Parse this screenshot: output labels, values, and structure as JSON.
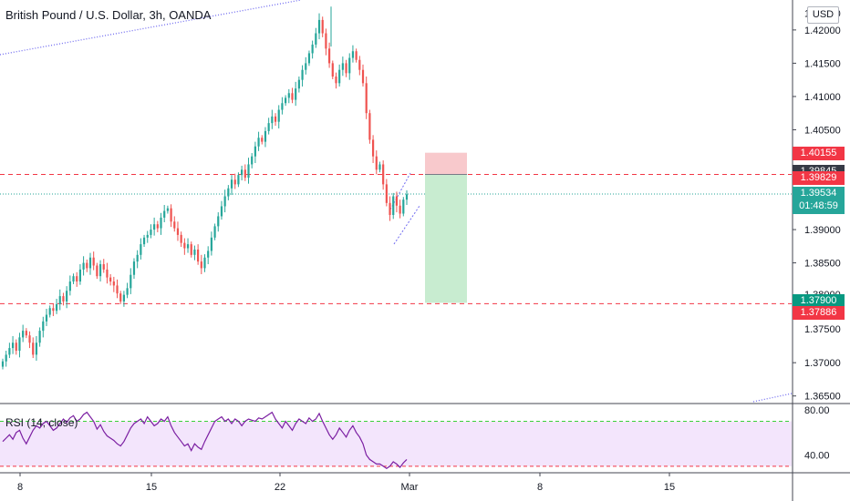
{
  "title": "British Pound / U.S. Dollar, 3h, OANDA",
  "currency_button": "USD",
  "rsi_title": "RSI (14, close)",
  "price_scale": {
    "ticks": [
      "1.42000",
      "1.41500",
      "1.41000",
      "1.40500",
      "1.39000",
      "1.38500",
      "1.37000",
      "1.36500"
    ],
    "partial_ticks": [
      "1.42000",
      "1.37500",
      "1.38000"
    ]
  },
  "rsi_scale": {
    "ticks": [
      "80.00",
      "40.00"
    ]
  },
  "time_axis": {
    "labels": [
      "8",
      "15",
      "22",
      "Mar",
      "8",
      "15"
    ]
  },
  "price_tags": [
    {
      "label": "1.40155",
      "color": "#f23645"
    },
    {
      "label": "1.39845",
      "color": "#363a45"
    },
    {
      "label": "1.39829",
      "color": "#f23645"
    },
    {
      "label": "1.39534",
      "sub": "01:48:59",
      "color": "#26a69a"
    },
    {
      "label": "1.37900",
      "color": "#089981"
    },
    {
      "label": "1.37886",
      "color": "#f23645"
    }
  ],
  "colors": {
    "up": "#26a69a",
    "down": "#ef5350",
    "rsi_line": "#7b1fa2",
    "rsi_band": "#f3e5fc",
    "stop_zone": "#f8c9cc",
    "target_zone": "#c8ecd0",
    "trendline": "#6f6af0"
  },
  "chart_data": {
    "type": "candlestick",
    "symbol": "GBPUSD",
    "timeframe": "3h",
    "ylim": [
      1.364,
      1.4245
    ],
    "levels": [
      {
        "price": 1.39829,
        "style": "dashed",
        "color": "#f23645"
      },
      {
        "price": 1.37886,
        "style": "dashed",
        "color": "#f23645"
      },
      {
        "price": 1.39534,
        "style": "dotted",
        "color": "#26a69a"
      }
    ],
    "position": {
      "entry": 1.39829,
      "stop": 1.40155,
      "target": 1.379
    },
    "closes": [
      1.3702,
      1.3712,
      1.3722,
      1.373,
      1.3718,
      1.3738,
      1.3748,
      1.3741,
      1.373,
      1.3712,
      1.373,
      1.3748,
      1.3762,
      1.3772,
      1.3782,
      1.3778,
      1.3788,
      1.38,
      1.3792,
      1.3808,
      1.3822,
      1.383,
      1.3822,
      1.384,
      1.385,
      1.3842,
      1.3858,
      1.3846,
      1.383,
      1.3848,
      1.384,
      1.3828,
      1.3822,
      1.3816,
      1.3804,
      1.3792,
      1.3802,
      1.3812,
      1.3832,
      1.3852,
      1.3862,
      1.3878,
      1.3888,
      1.3892,
      1.39,
      1.3908,
      1.3902,
      1.3918,
      1.3928,
      1.3932,
      1.3912,
      1.3902,
      1.3892,
      1.388,
      1.3872,
      1.3878,
      1.3862,
      1.387,
      1.3852,
      1.3842,
      1.3858,
      1.3868,
      1.3888,
      1.3905,
      1.392,
      1.3935,
      1.395,
      1.3962,
      1.3975,
      1.3968,
      1.3982,
      1.399,
      1.3978,
      1.3998,
      1.401,
      1.4025,
      1.4038,
      1.4032,
      1.4048,
      1.406,
      1.407,
      1.4062,
      1.408,
      1.409,
      1.4098,
      1.4105,
      1.4095,
      1.4112,
      1.4125,
      1.414,
      1.415,
      1.4165,
      1.4178,
      1.4195,
      1.4215,
      1.4195,
      1.4172,
      1.415,
      1.413,
      1.412,
      1.414,
      1.415,
      1.4135,
      1.4158,
      1.4168,
      1.4155,
      1.414,
      1.412,
      1.4075,
      1.4035,
      1.401,
      1.399,
      1.3998,
      1.3968,
      1.394,
      1.3922,
      1.395,
      1.3936,
      1.3924,
      1.3945,
      1.3953
    ],
    "rsi": {
      "levels": [
        70,
        30
      ],
      "range": [
        25,
        85
      ],
      "values": [
        52,
        55,
        58,
        54,
        60,
        62,
        55,
        50,
        56,
        62,
        66,
        64,
        68,
        70,
        66,
        62,
        64,
        68,
        72,
        69,
        73,
        75,
        70,
        72,
        76,
        78,
        74,
        70,
        63,
        67,
        61,
        57,
        55,
        53,
        50,
        48,
        52,
        58,
        64,
        68,
        70,
        72,
        68,
        74,
        70,
        66,
        68,
        72,
        70,
        74,
        66,
        60,
        56,
        52,
        48,
        50,
        44,
        50,
        47,
        45,
        52,
        58,
        64,
        70,
        72,
        74,
        70,
        72,
        68,
        72,
        70,
        66,
        70,
        72,
        71,
        70,
        73,
        72,
        74,
        76,
        78,
        72,
        68,
        64,
        70,
        66,
        62,
        68,
        72,
        70,
        68,
        73,
        70,
        72,
        77,
        70,
        64,
        58,
        54,
        58,
        64,
        60,
        56,
        62,
        66,
        60,
        56,
        50,
        40,
        36,
        34,
        32,
        32,
        30,
        28,
        30,
        34,
        32,
        29,
        33,
        36
      ]
    }
  }
}
